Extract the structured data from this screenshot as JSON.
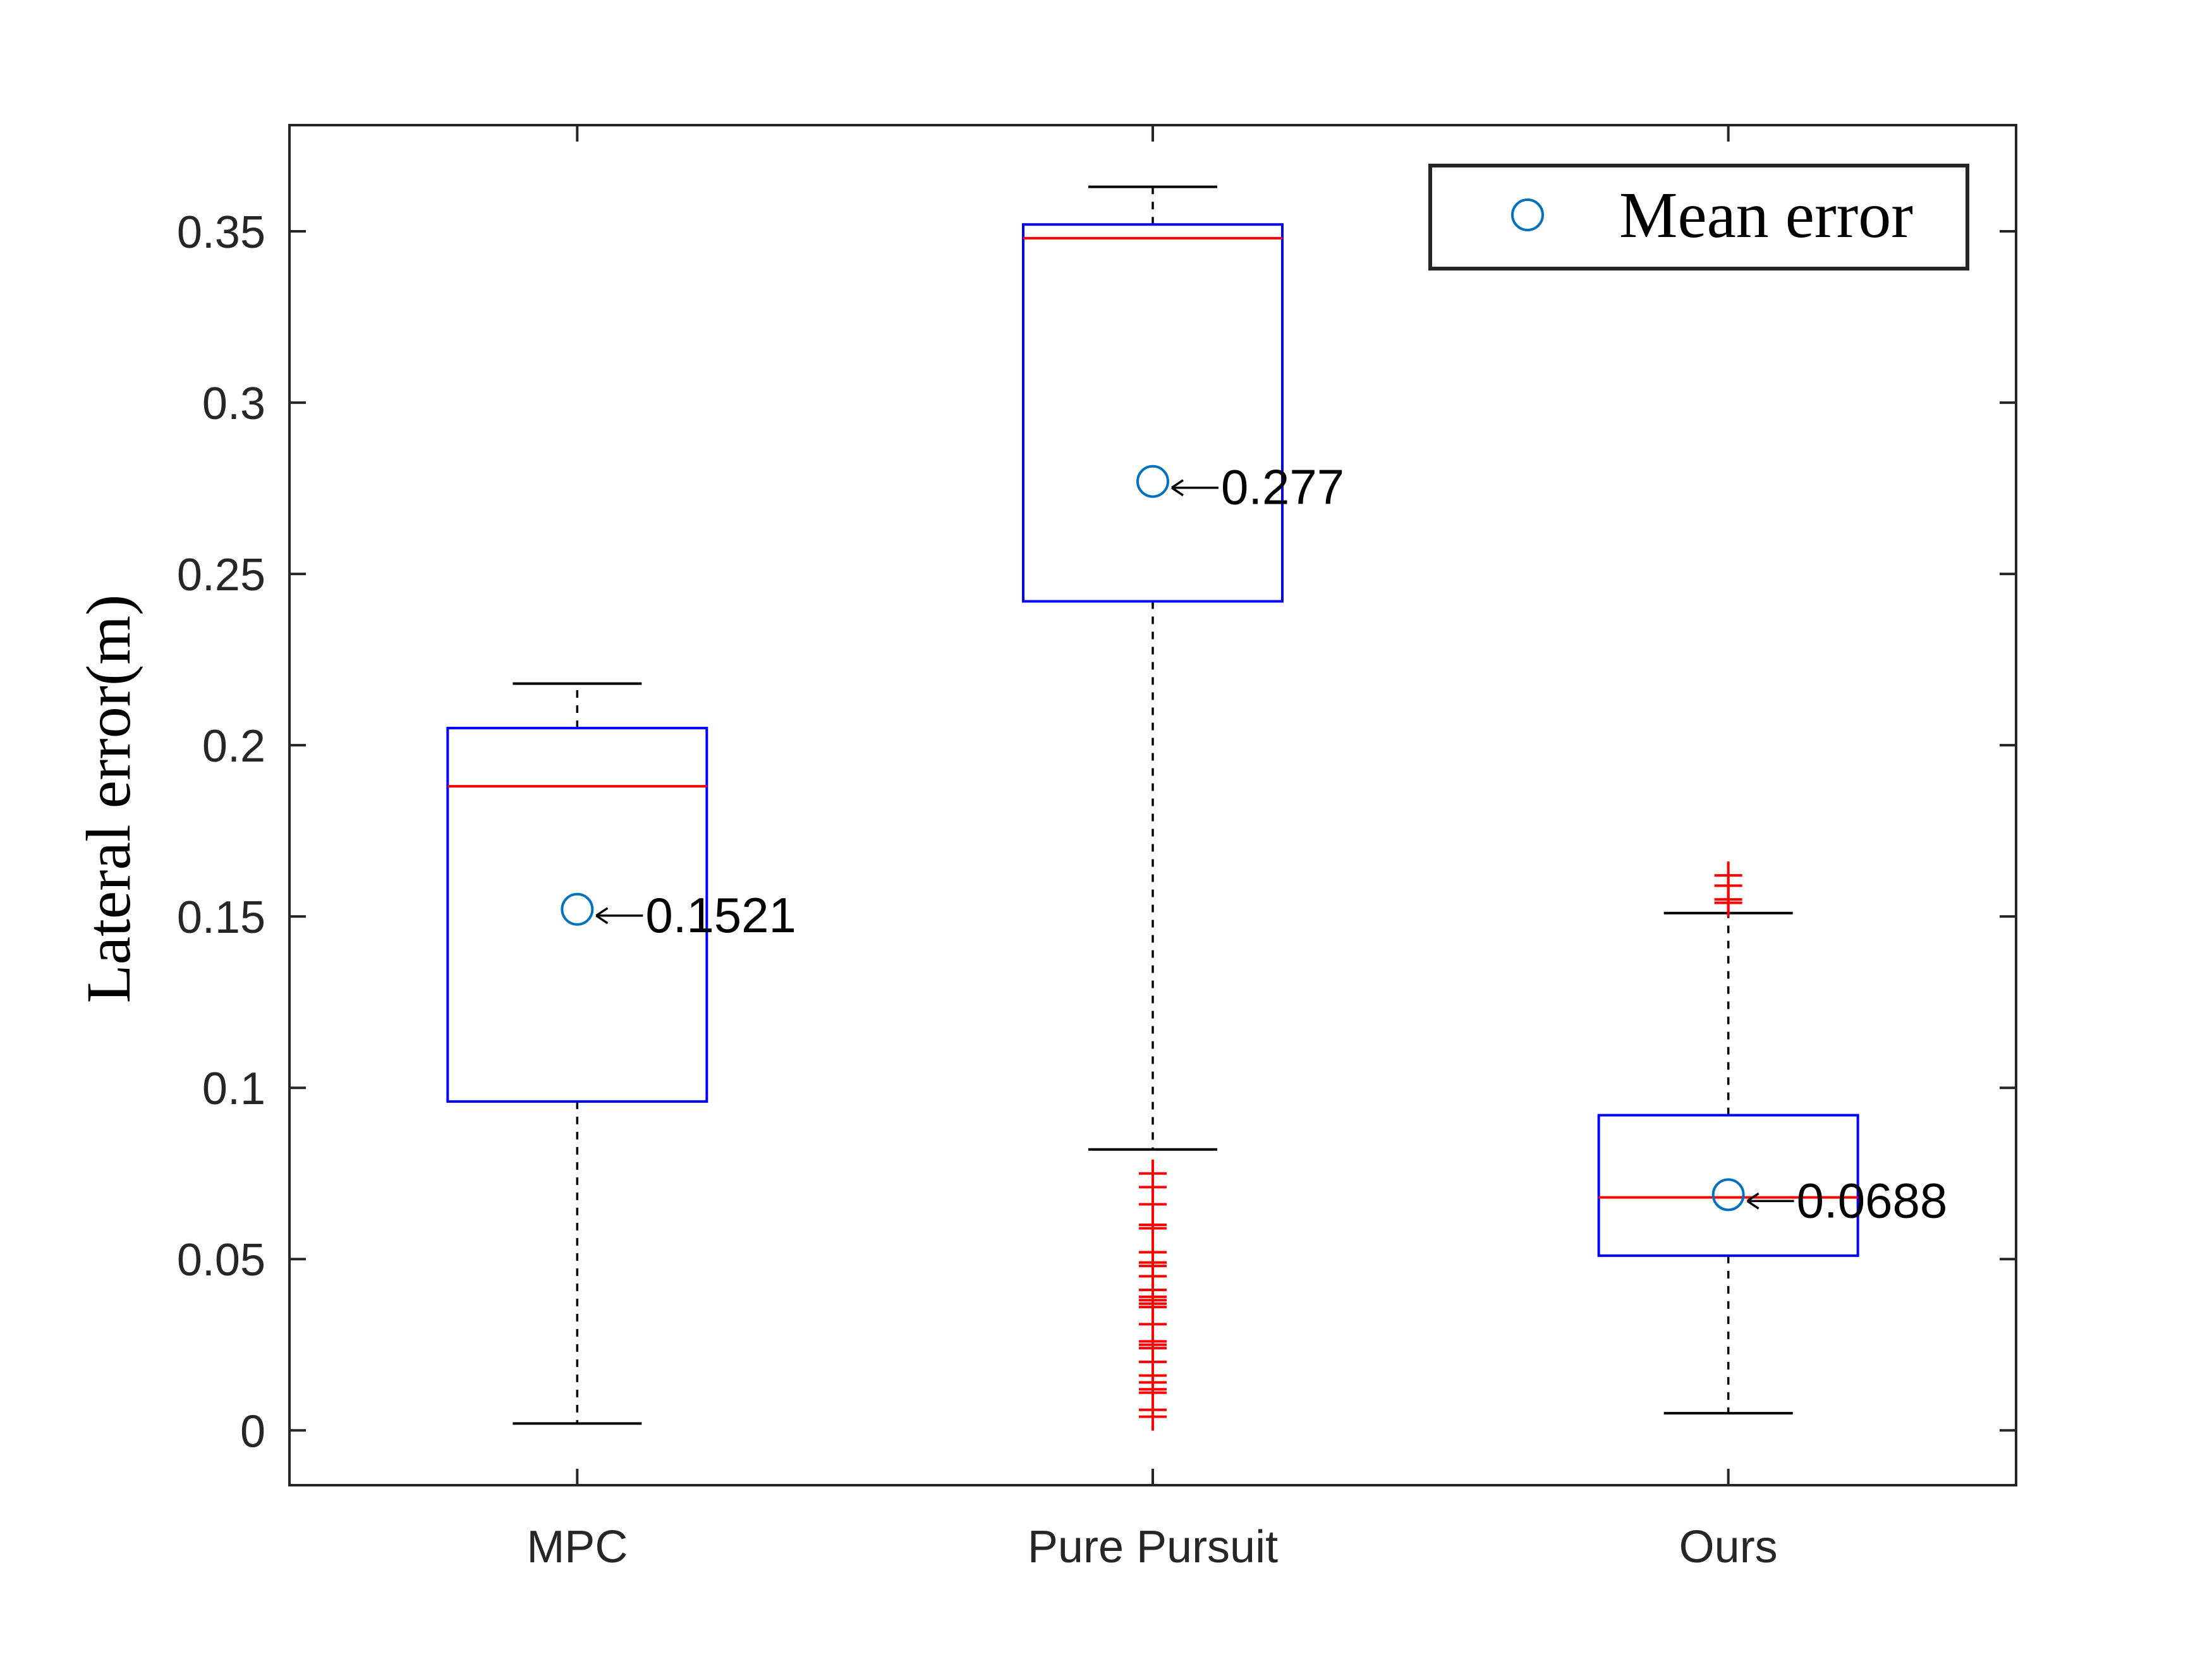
{
  "chart_data": {
    "type": "boxplot",
    "ylabel": "Lateral error(m)",
    "xlabel": "",
    "ylim": [
      -0.016,
      0.381
    ],
    "yticks": [
      0,
      0.05,
      0.1,
      0.15,
      0.2,
      0.25,
      0.3,
      0.35
    ],
    "ytick_labels": [
      "0",
      "0.05",
      "0.1",
      "0.15",
      "0.2",
      "0.25",
      "0.3",
      "0.35"
    ],
    "categories": [
      "MPC",
      "Pure Pursuit",
      "Ours"
    ],
    "boxes": [
      {
        "category": "MPC",
        "whisker_low": 0.002,
        "q1": 0.096,
        "median": 0.188,
        "q3": 0.205,
        "whisker_high": 0.218,
        "mean": 0.1521,
        "mean_label": "0.1521",
        "outliers": []
      },
      {
        "category": "Pure Pursuit",
        "whisker_low": 0.082,
        "q1": 0.242,
        "median": 0.348,
        "q3": 0.352,
        "whisker_high": 0.363,
        "mean": 0.277,
        "mean_label": "0.277",
        "outliers": [
          0.075,
          0.071,
          0.066,
          0.06,
          0.059,
          0.052,
          0.049,
          0.048,
          0.045,
          0.041,
          0.039,
          0.038,
          0.037,
          0.036,
          0.031,
          0.026,
          0.025,
          0.024,
          0.02,
          0.016,
          0.014,
          0.012,
          0.011,
          0.006,
          0.004
        ]
      },
      {
        "category": "Ours",
        "whisker_low": 0.005,
        "q1": 0.051,
        "median": 0.068,
        "q3": 0.092,
        "whisker_high": 0.151,
        "mean": 0.0688,
        "mean_label": "0.0688",
        "outliers": [
          0.154,
          0.155,
          0.159,
          0.162
        ]
      }
    ],
    "legend": {
      "label": "Mean error",
      "position": "top-right"
    },
    "colors": {
      "box": "#0000ff",
      "median": "#ff0000",
      "outlier": "#ff0000",
      "whisker": "#000000",
      "mean_marker": "#0072bd",
      "axes": "#262626"
    },
    "grid": false
  }
}
